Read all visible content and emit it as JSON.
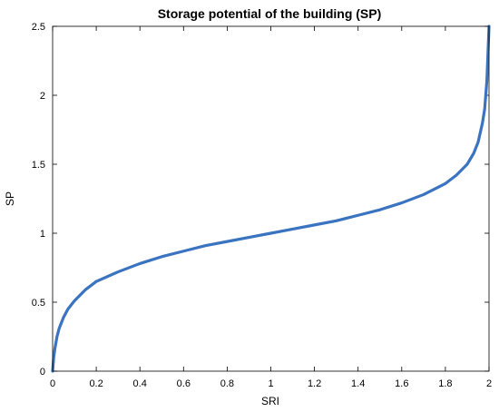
{
  "chart_data": {
    "type": "line",
    "title": "Storage potential of the building (SP)",
    "xlabel": "SRI",
    "ylabel": "SP",
    "xlim": [
      0,
      2
    ],
    "ylim": [
      0,
      2.5
    ],
    "xticks": [
      0,
      0.2,
      0.4,
      0.6,
      0.8,
      1,
      1.2,
      1.4,
      1.6,
      1.8,
      2
    ],
    "xtick_labels": [
      "0",
      "0.2",
      "0.4",
      "0.6",
      "0.8",
      "1",
      "1.2",
      "1.4",
      "1.6",
      "1.8",
      "2"
    ],
    "yticks": [
      0,
      0.5,
      1,
      1.5,
      2,
      2.5
    ],
    "ytick_labels": [
      "0",
      "0.5",
      "1",
      "1.5",
      "2",
      "2.5"
    ],
    "grid": false,
    "series": [
      {
        "color": "#3a73c0",
        "x": [
          0,
          0.005,
          0.01,
          0.02,
          0.03,
          0.05,
          0.07,
          0.1,
          0.15,
          0.2,
          0.3,
          0.4,
          0.5,
          0.6,
          0.7,
          0.8,
          0.9,
          1.0,
          1.1,
          1.2,
          1.3,
          1.4,
          1.5,
          1.6,
          1.7,
          1.8,
          1.85,
          1.9,
          1.93,
          1.95,
          1.97,
          1.98,
          1.99,
          1.995,
          2.0
        ],
        "y": [
          0,
          0.1,
          0.16,
          0.25,
          0.31,
          0.39,
          0.45,
          0.51,
          0.59,
          0.65,
          0.72,
          0.78,
          0.83,
          0.87,
          0.91,
          0.94,
          0.97,
          1.0,
          1.03,
          1.06,
          1.09,
          1.13,
          1.17,
          1.22,
          1.28,
          1.36,
          1.42,
          1.5,
          1.58,
          1.66,
          1.8,
          1.9,
          2.1,
          2.3,
          2.5
        ]
      }
    ]
  }
}
